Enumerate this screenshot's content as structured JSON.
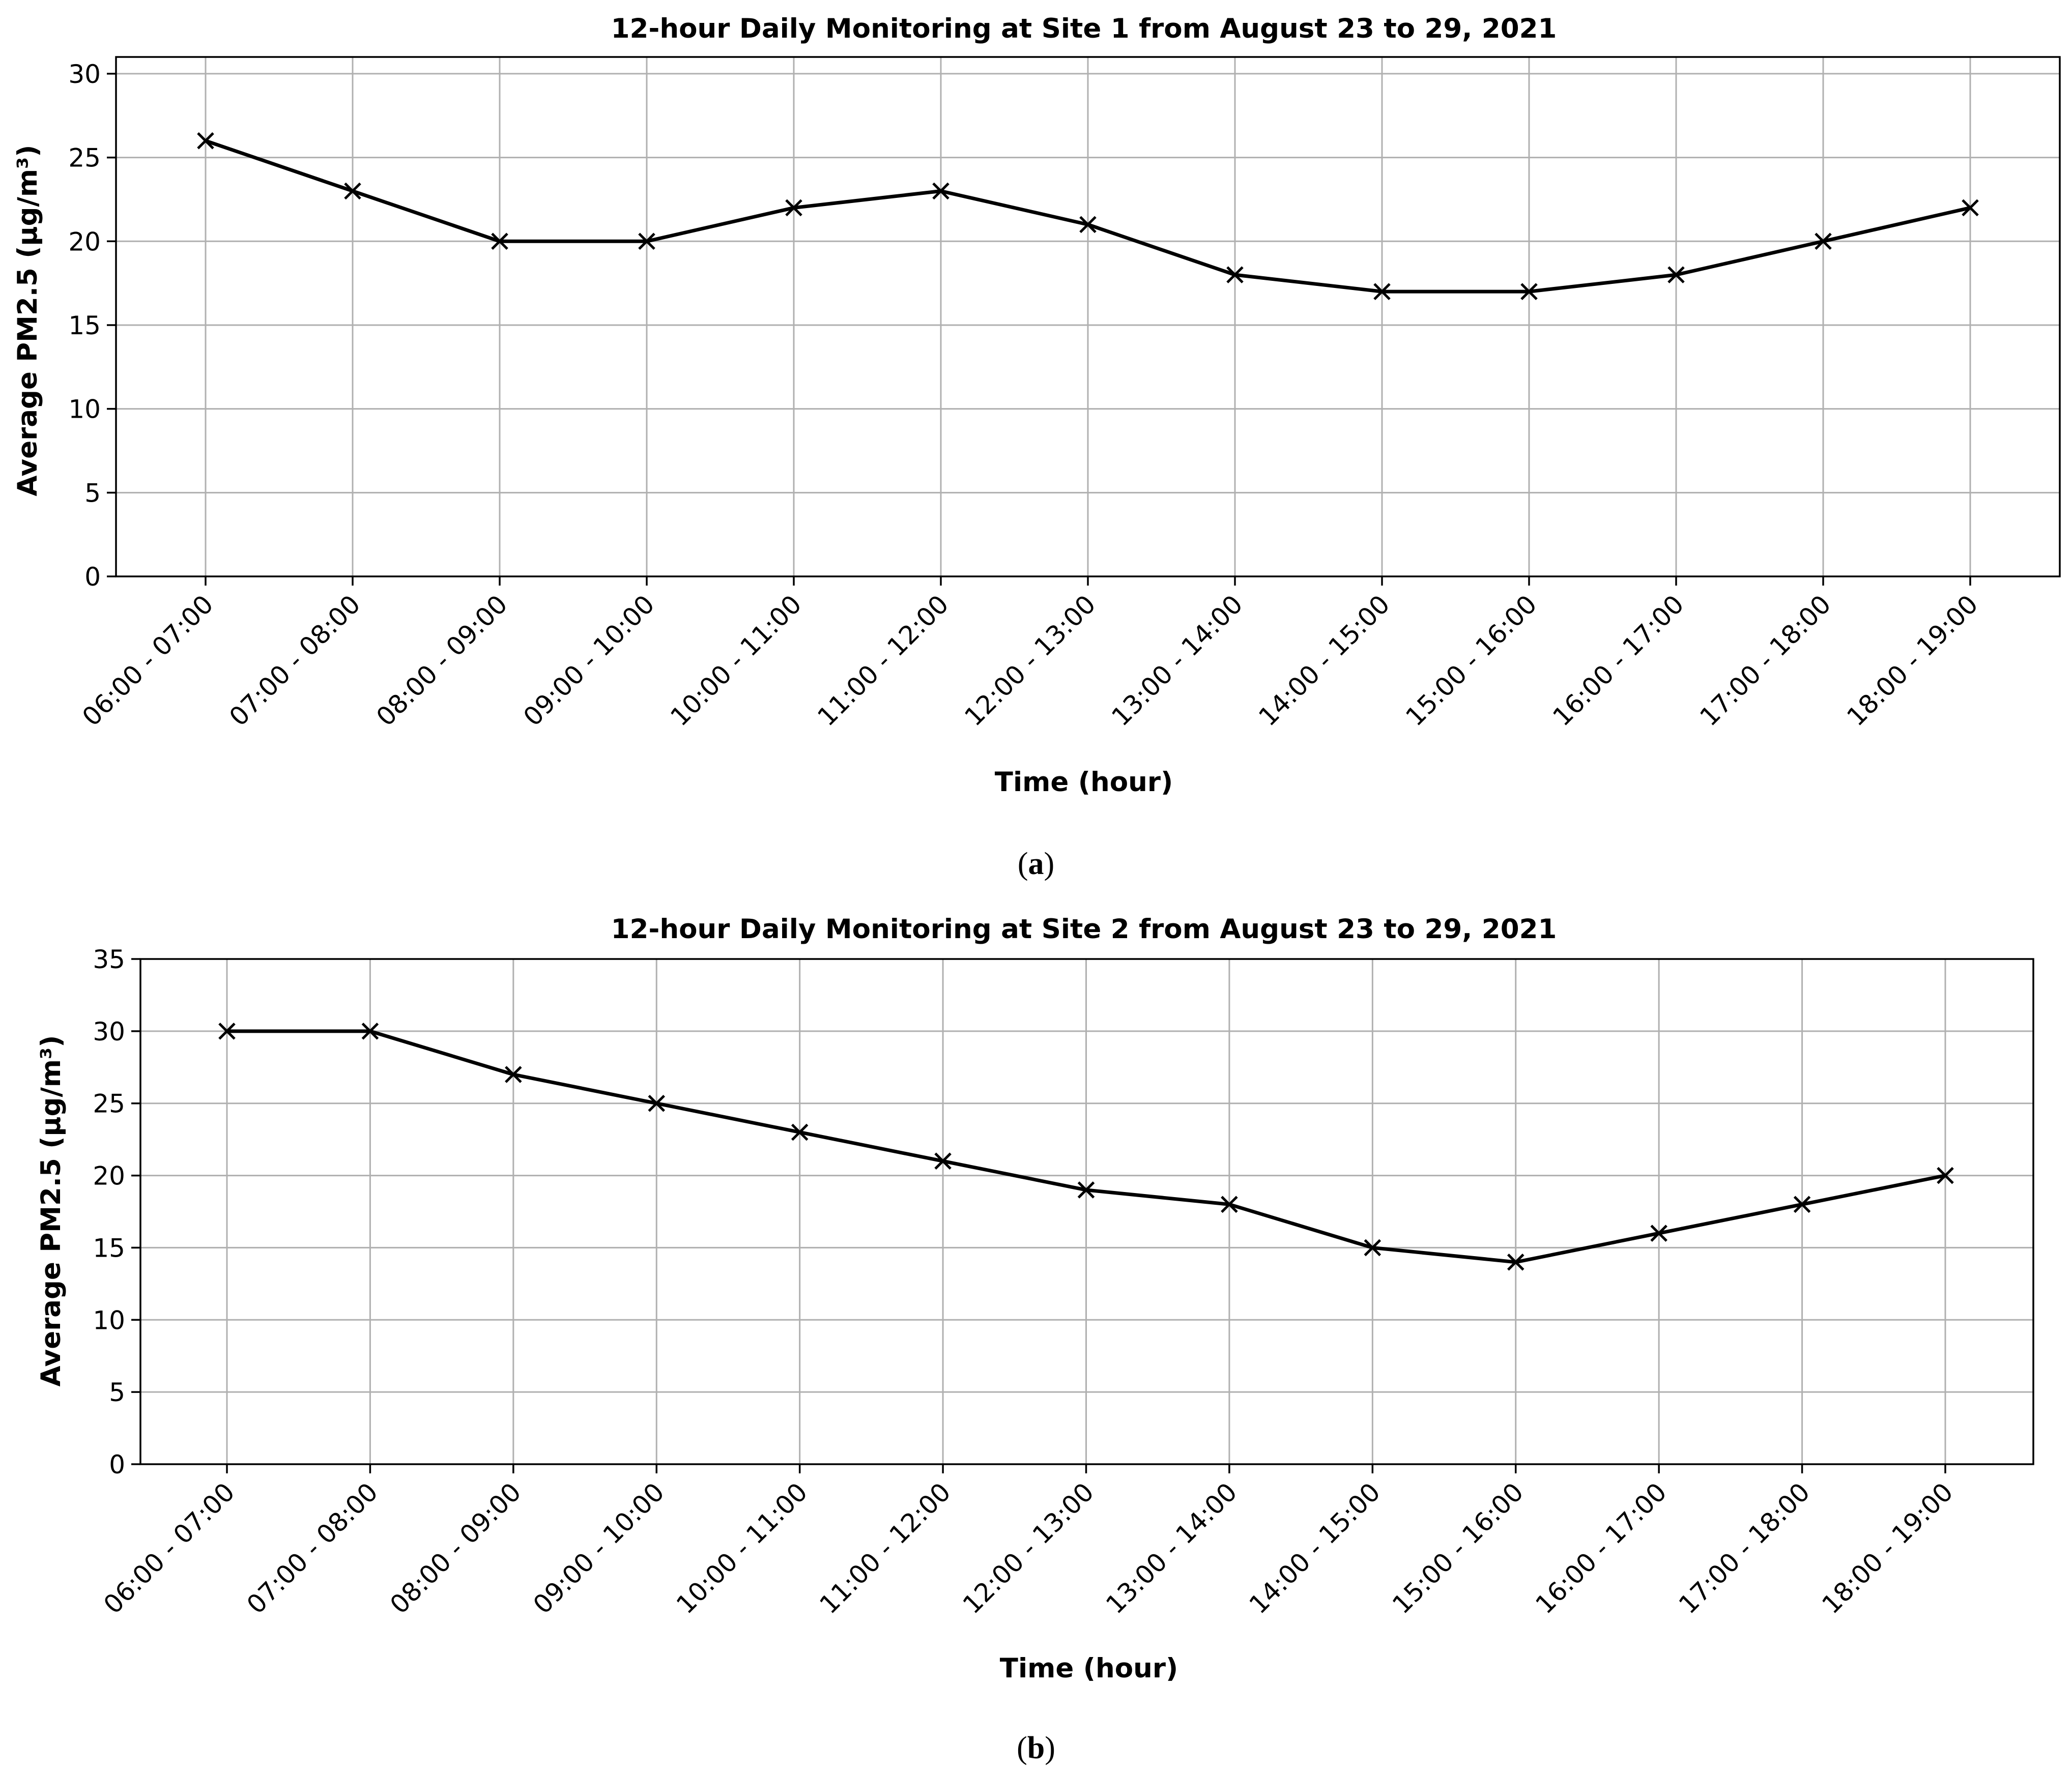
{
  "chart_data": [
    {
      "type": "line",
      "panel_label": "a",
      "title": "12-hour Daily Monitoring at Site 1 from August 23 to 29, 2021",
      "xlabel": "Time (hour)",
      "ylabel": "Average PM2.5 (µg/m³)",
      "categories": [
        "06:00 - 07:00",
        "07:00 - 08:00",
        "08:00 - 09:00",
        "09:00 - 10:00",
        "10:00 - 11:00",
        "11:00 - 12:00",
        "12:00 - 13:00",
        "13:00 - 14:00",
        "14:00 - 15:00",
        "15:00 - 16:00",
        "16:00 - 17:00",
        "17:00 - 18:00",
        "18:00 - 19:00"
      ],
      "values": [
        26,
        23,
        20,
        20,
        22,
        23,
        21,
        18,
        17,
        17,
        18,
        20,
        22
      ],
      "ylim": [
        0,
        31
      ],
      "yticks": [
        0,
        5,
        10,
        15,
        20,
        25,
        30
      ],
      "grid": true,
      "marker": "x",
      "line_color": "#000000"
    },
    {
      "type": "line",
      "panel_label": "b",
      "title": "12-hour Daily Monitoring at Site 2 from August 23 to 29, 2021",
      "xlabel": "Time (hour)",
      "ylabel": "Average PM2.5 (µg/m³)",
      "categories": [
        "06:00 - 07:00",
        "07:00 - 08:00",
        "08:00 - 09:00",
        "09:00 - 10:00",
        "10:00 - 11:00",
        "11:00 - 12:00",
        "12:00 - 13:00",
        "13:00 - 14:00",
        "14:00 - 15:00",
        "15:00 - 16:00",
        "16:00 - 17:00",
        "17:00 - 18:00",
        "18:00 - 19:00"
      ],
      "values": [
        30,
        30,
        27,
        25,
        23,
        21,
        19,
        18,
        15,
        14,
        16,
        18,
        20
      ],
      "ylim": [
        0,
        35
      ],
      "yticks": [
        0,
        5,
        10,
        15,
        20,
        25,
        30,
        35
      ],
      "grid": true,
      "marker": "x",
      "line_color": "#000000"
    }
  ]
}
